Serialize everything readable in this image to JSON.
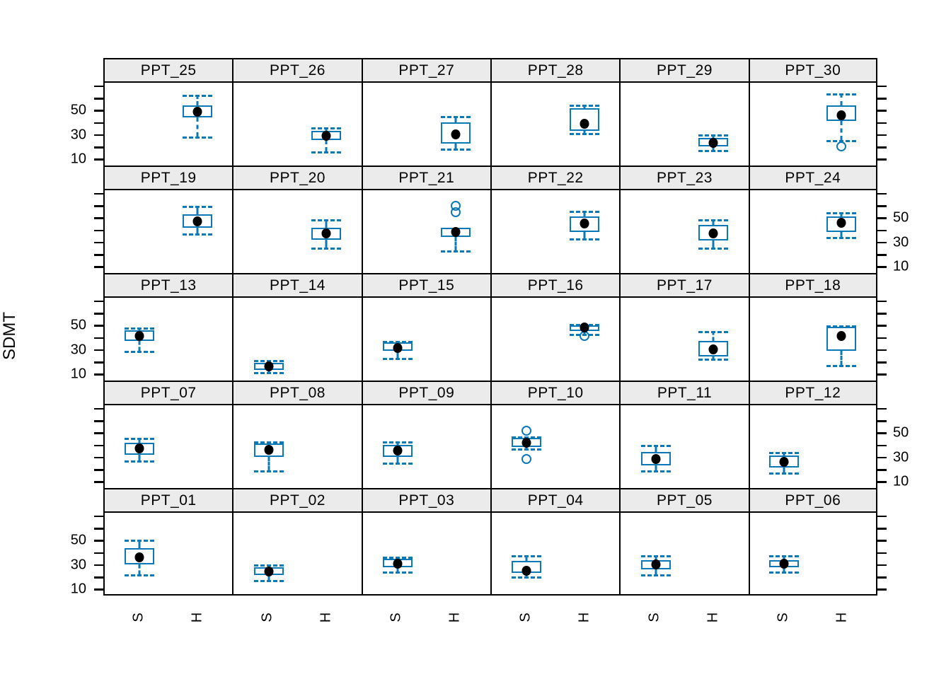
{
  "chart_data": {
    "type": "boxplot",
    "title": "",
    "ylabel": "SDMT",
    "x_categories": [
      "S",
      "H"
    ],
    "ylim": [
      5,
      74
    ],
    "y_ticks": [
      10,
      20,
      30,
      40,
      50,
      60,
      70
    ],
    "y_labeled_ticks": [
      50,
      30,
      10
    ],
    "y_tick_label_sides_top_to_bottom": [
      "left",
      "right",
      "left",
      "right",
      "left"
    ],
    "grid": {
      "rows": 5,
      "cols": 6,
      "order": "row-major from top-left"
    },
    "x_positions_pct": {
      "S": 27.3,
      "H": 72.7
    },
    "panels": [
      {
        "label": "PPT_25",
        "group": "H",
        "whisker_low": 29,
        "q1": 45,
        "median": 50,
        "q3": 55,
        "whisker_high": 64,
        "outliers": []
      },
      {
        "label": "PPT_26",
        "group": "H",
        "whisker_low": 17,
        "q1": 26,
        "median": 30,
        "q3": 34,
        "whisker_high": 37,
        "outliers": []
      },
      {
        "label": "PPT_27",
        "group": "H",
        "whisker_low": 19,
        "q1": 23,
        "median": 31,
        "q3": 41,
        "whisker_high": 46,
        "outliers": []
      },
      {
        "label": "PPT_28",
        "group": "H",
        "whisker_low": 32,
        "q1": 34,
        "median": 40,
        "q3": 53,
        "whisker_high": 56,
        "outliers": []
      },
      {
        "label": "PPT_29",
        "group": "H",
        "whisker_low": 18,
        "q1": 21,
        "median": 24,
        "q3": 28,
        "whisker_high": 31,
        "outliers": []
      },
      {
        "label": "PPT_30",
        "group": "H",
        "whisker_low": 26,
        "q1": 42,
        "median": 47,
        "q3": 55,
        "whisker_high": 65,
        "outliers": [
          21
        ]
      },
      {
        "label": "PPT_19",
        "group": "H",
        "whisker_low": 38,
        "q1": 43,
        "median": 48,
        "q3": 54,
        "whisker_high": 61,
        "outliers": []
      },
      {
        "label": "PPT_20",
        "group": "H",
        "whisker_low": 26,
        "q1": 33,
        "median": 38,
        "q3": 43,
        "whisker_high": 50,
        "outliers": []
      },
      {
        "label": "PPT_21",
        "group": "H",
        "whisker_low": 24,
        "q1": 35,
        "median": 39,
        "q3": 43,
        "whisker_high": 43,
        "outliers": [
          56,
          61
        ]
      },
      {
        "label": "PPT_22",
        "group": "H",
        "whisker_low": 34,
        "q1": 39,
        "median": 46,
        "q3": 52,
        "whisker_high": 57,
        "outliers": []
      },
      {
        "label": "PPT_23",
        "group": "H",
        "whisker_low": 26,
        "q1": 32,
        "median": 38,
        "q3": 45,
        "whisker_high": 50,
        "outliers": []
      },
      {
        "label": "PPT_24",
        "group": "H",
        "whisker_low": 35,
        "q1": 39,
        "median": 47,
        "q3": 52,
        "whisker_high": 56,
        "outliers": []
      },
      {
        "label": "PPT_13",
        "group": "S",
        "whisker_low": 30,
        "q1": 38,
        "median": 42,
        "q3": 47,
        "whisker_high": 49,
        "outliers": []
      },
      {
        "label": "PPT_14",
        "group": "S",
        "whisker_low": 12,
        "q1": 14,
        "median": 17,
        "q3": 20,
        "whisker_high": 22,
        "outliers": []
      },
      {
        "label": "PPT_15",
        "group": "S",
        "whisker_low": 24,
        "q1": 30,
        "median": 32,
        "q3": 37,
        "whisker_high": 38,
        "outliers": []
      },
      {
        "label": "PPT_16",
        "group": "H",
        "whisker_low": 44,
        "q1": 46,
        "median": 49,
        "q3": 51,
        "whisker_high": 52,
        "outliers": [
          42
        ]
      },
      {
        "label": "PPT_17",
        "group": "H",
        "whisker_low": 23,
        "q1": 25,
        "median": 31,
        "q3": 38,
        "whisker_high": 46,
        "outliers": []
      },
      {
        "label": "PPT_18",
        "group": "H",
        "whisker_low": 18,
        "q1": 30,
        "median": 42,
        "q3": 50,
        "whisker_high": 51,
        "outliers": []
      },
      {
        "label": "PPT_07",
        "group": "S",
        "whisker_low": 28,
        "q1": 33,
        "median": 38,
        "q3": 43,
        "whisker_high": 47,
        "outliers": []
      },
      {
        "label": "PPT_08",
        "group": "S",
        "whisker_low": 20,
        "q1": 31,
        "median": 37,
        "q3": 42,
        "whisker_high": 44,
        "outliers": []
      },
      {
        "label": "PPT_09",
        "group": "S",
        "whisker_low": 26,
        "q1": 31,
        "median": 36,
        "q3": 41,
        "whisker_high": 44,
        "outliers": []
      },
      {
        "label": "PPT_10",
        "group": "S",
        "whisker_low": 38,
        "q1": 39,
        "median": 43,
        "q3": 47,
        "whisker_high": 48,
        "outliers": [
          53,
          29
        ]
      },
      {
        "label": "PPT_11",
        "group": "S",
        "whisker_low": 20,
        "q1": 24,
        "median": 29,
        "q3": 35,
        "whisker_high": 41,
        "outliers": []
      },
      {
        "label": "PPT_12",
        "group": "S",
        "whisker_low": 18,
        "q1": 22,
        "median": 27,
        "q3": 32,
        "whisker_high": 35,
        "outliers": []
      },
      {
        "label": "PPT_01",
        "group": "S",
        "whisker_low": 22,
        "q1": 30,
        "median": 36,
        "q3": 44,
        "whisker_high": 51,
        "outliers": []
      },
      {
        "label": "PPT_02",
        "group": "S",
        "whisker_low": 17,
        "q1": 21,
        "median": 24,
        "q3": 28,
        "whisker_high": 30,
        "outliers": []
      },
      {
        "label": "PPT_03",
        "group": "S",
        "whisker_low": 24,
        "q1": 28,
        "median": 31,
        "q3": 35,
        "whisker_high": 37,
        "outliers": []
      },
      {
        "label": "PPT_04",
        "group": "S",
        "whisker_low": 20,
        "q1": 23,
        "median": 25,
        "q3": 33,
        "whisker_high": 38,
        "outliers": []
      },
      {
        "label": "PPT_05",
        "group": "S",
        "whisker_low": 22,
        "q1": 26,
        "median": 30,
        "q3": 34,
        "whisker_high": 38,
        "outliers": []
      },
      {
        "label": "PPT_06",
        "group": "S",
        "whisker_low": 24,
        "q1": 28,
        "median": 31,
        "q3": 34,
        "whisker_high": 38,
        "outliers": []
      }
    ]
  },
  "axes": {
    "y_title": "SDMT",
    "y_tick_labels": [
      "50",
      "30",
      "10"
    ],
    "x_category_labels": [
      "S",
      "H"
    ]
  },
  "colors": {
    "box": "#0b79b8",
    "median_dot": "#000000",
    "outlier": "#0b79b8",
    "strip_background": "#ebebeb",
    "grid_border": "#000000",
    "text": "#000000"
  }
}
